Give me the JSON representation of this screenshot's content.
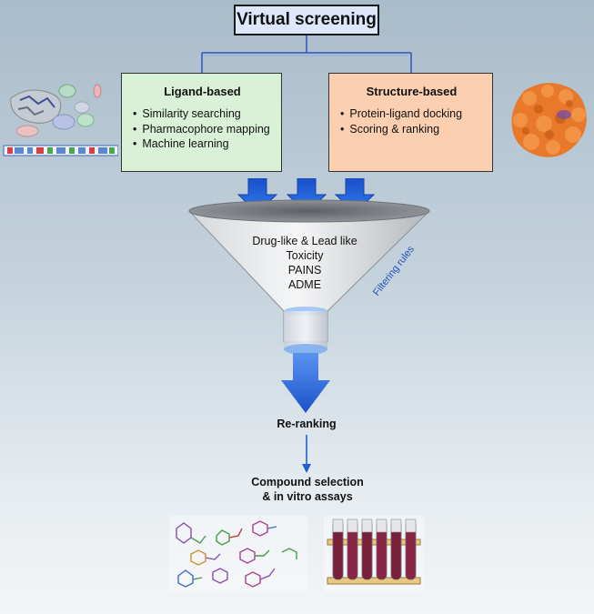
{
  "title": "Virtual screening",
  "ligand": {
    "title": "Ligand-based",
    "items": [
      "Similarity searching",
      "Pharmacophore mapping",
      "Machine learning"
    ]
  },
  "structure": {
    "title": "Structure-based",
    "items": [
      "Protein-ligand docking",
      "Scoring & ranking"
    ]
  },
  "funnel": {
    "rules": [
      "Drug-like & Lead like",
      "Toxicity",
      "PAINS",
      "ADME"
    ],
    "side_label": "Filtering rules"
  },
  "reranking": "Re-ranking",
  "selection": [
    "Compound selection",
    "& in vitro assays"
  ],
  "colors": {
    "arrow_blue": "#1f5fd6",
    "ligand_fill": "#d9f1d6",
    "structure_fill": "#fbcfb0",
    "title_fill": "#dde6fb",
    "protein_orange": "#e8782a"
  }
}
